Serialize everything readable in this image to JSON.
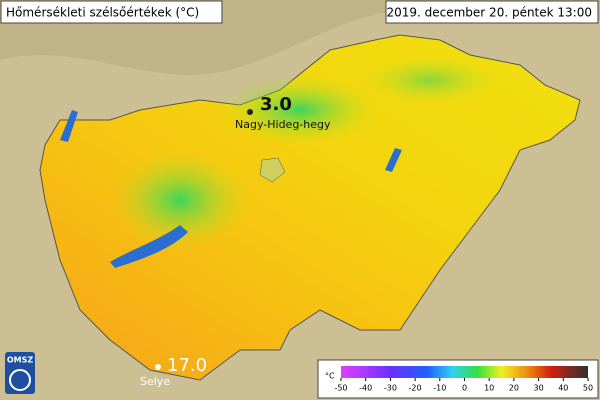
{
  "header": {
    "title": "Hőmérsékleti szélsőértékek (°C)",
    "datetime": "2019. december 20. péntek 13:00"
  },
  "stations": [
    {
      "value": "3.0",
      "name": "Nagy-Hideg-hegy"
    },
    {
      "value": "17.0",
      "name": "Selye"
    }
  ],
  "logo": "OMSZ",
  "legend": {
    "unit": "°C",
    "ticks": [
      -50,
      -40,
      -30,
      -20,
      -10,
      0,
      10,
      20,
      30,
      40,
      50
    ]
  }
}
